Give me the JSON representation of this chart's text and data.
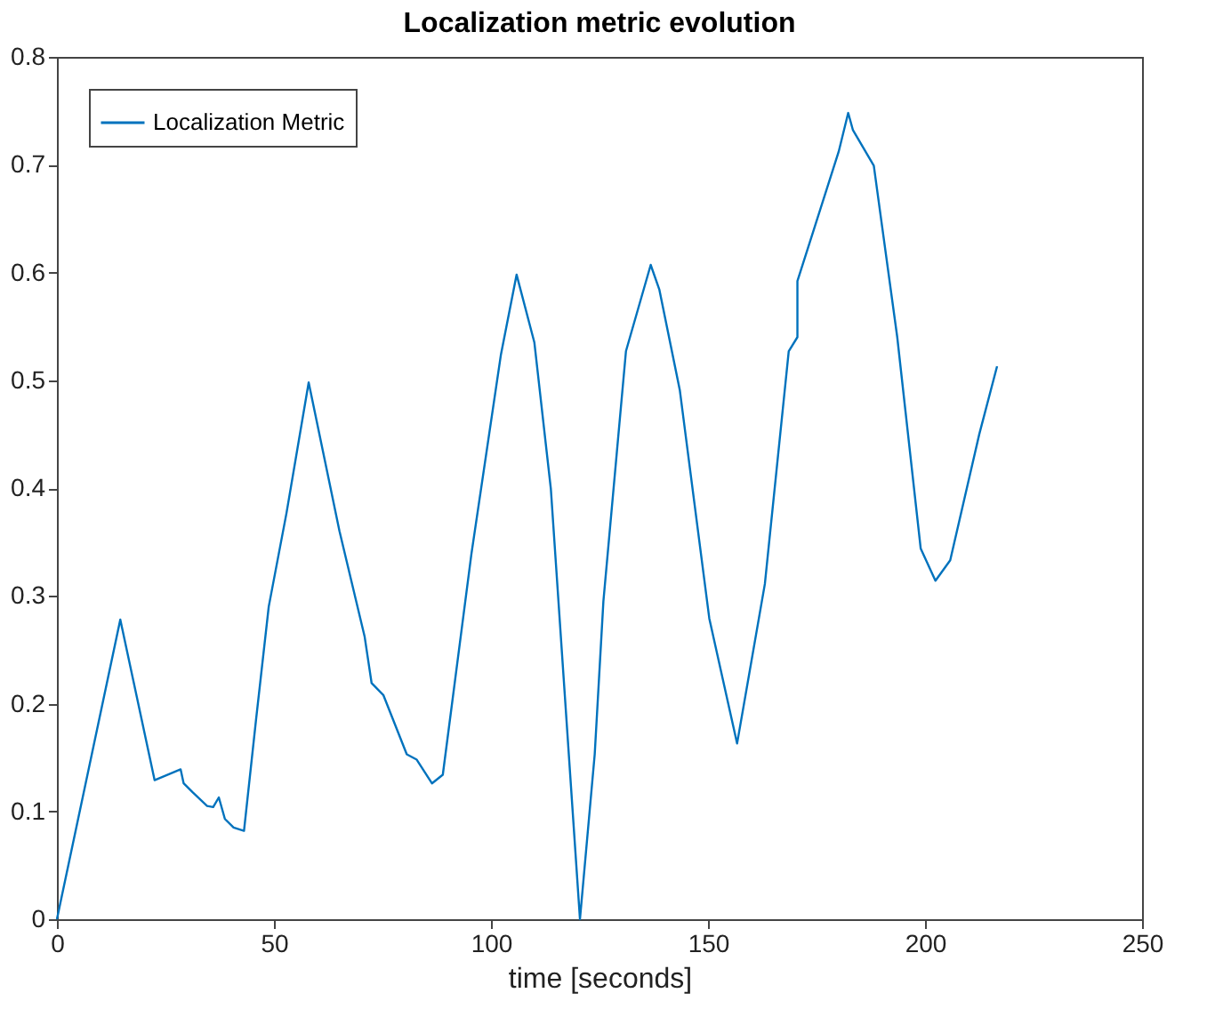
{
  "chart_data": {
    "type": "line",
    "title": "Localization metric evolution",
    "xlabel": "time [seconds]",
    "x": [
      0,
      14.6,
      22.5,
      28.5,
      29.2,
      31.2,
      34.6,
      36,
      37.3,
      38.7,
      40.7,
      43.1,
      45.9,
      48.8,
      52.9,
      58.0,
      65.1,
      70.9,
      72.5,
      75.2,
      80.6,
      82.9,
      86.4,
      88.9,
      95.5,
      102.3,
      105.9,
      110,
      113.8,
      120.5,
      123.9,
      125.9,
      131.1,
      136.8,
      138.8,
      143.5,
      150.3,
      156.7,
      163.1,
      168.6,
      170.6,
      170.6,
      180.1,
      182.3,
      183.4,
      188.2,
      193.6,
      199,
      202.4,
      205.8,
      212.5,
      216.6
    ],
    "series": [
      {
        "name": "Localization Metric",
        "color": "#0072bd",
        "values": [
          0,
          0.278,
          0.129,
          0.139,
          0.126,
          0.118,
          0.105,
          0.104,
          0.113,
          0.093,
          0.085,
          0.082,
          0.186,
          0.29,
          0.377,
          0.498,
          0.36,
          0.262,
          0.219,
          0.208,
          0.153,
          0.148,
          0.126,
          0.134,
          0.339,
          0.524,
          0.598,
          0.535,
          0.399,
          0,
          0.153,
          0.295,
          0.527,
          0.607,
          0.584,
          0.491,
          0.279,
          0.163,
          0.311,
          0.527,
          0.54,
          0.592,
          0.712,
          0.748,
          0.732,
          0.699,
          0.54,
          0.344,
          0.314,
          0.333,
          0.45,
          0.513
        ]
      }
    ],
    "xlim": [
      0,
      250
    ],
    "xticks": [
      0,
      50,
      100,
      150,
      200,
      250
    ],
    "ylim": [
      0,
      0.8
    ],
    "yticks": [
      0,
      0.1,
      0.2,
      0.3,
      0.4,
      0.5,
      0.6,
      0.7,
      0.8
    ],
    "legend": "top left",
    "grid": false,
    "marker": "none",
    "line_style": "solid"
  }
}
